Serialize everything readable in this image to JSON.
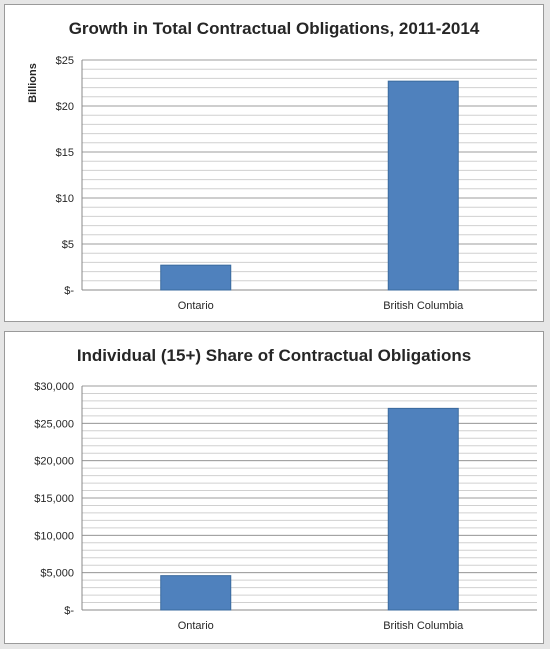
{
  "chart_data": [
    {
      "type": "bar",
      "title": "Growth in Total Contractual Obligations, 2011-2014",
      "ylabel": "Billions",
      "categories": [
        "Ontario",
        "British Columbia"
      ],
      "values": [
        2.7,
        22.7
      ],
      "ylim": [
        0,
        25
      ],
      "yticks": [
        0,
        5,
        10,
        15,
        20,
        25
      ],
      "ytick_labels": [
        "$-",
        "$5",
        "$10",
        "$15",
        "$20",
        "$25"
      ],
      "grid": true,
      "bar_color": "#4f81bd"
    },
    {
      "type": "bar",
      "title": "Individual (15+) Share of Contractual Obligations",
      "ylabel": "",
      "categories": [
        "Ontario",
        "British Columbia"
      ],
      "values": [
        4600,
        27000
      ],
      "ylim": [
        0,
        30000
      ],
      "yticks": [
        0,
        5000,
        10000,
        15000,
        20000,
        25000,
        30000
      ],
      "ytick_labels": [
        "$-",
        "$5,000",
        "$10,000",
        "$15,000",
        "$20,000",
        "$25,000",
        "$30,000"
      ],
      "grid": true,
      "bar_color": "#4f81bd"
    }
  ]
}
